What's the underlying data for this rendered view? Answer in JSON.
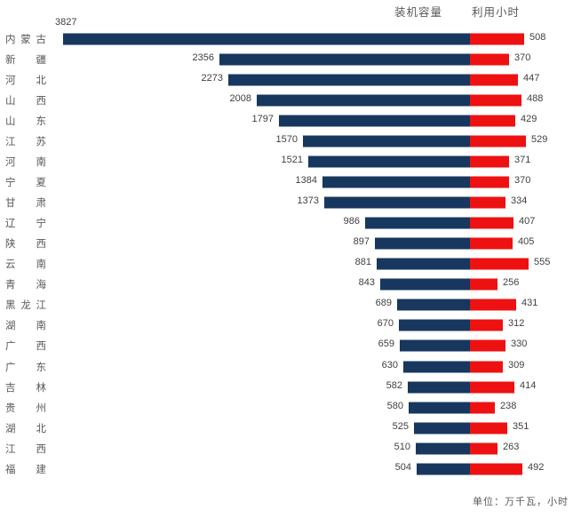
{
  "header": {
    "capacity_label": "装机容量",
    "hours_label": "利用小时"
  },
  "footer": {
    "unit_note": "单位：万千瓦，小时"
  },
  "colors": {
    "capacity_bar": "#17375E",
    "hours_bar": "#EE1111",
    "value_text": "#3F3F3F",
    "axis_text": "#595959",
    "background": "#FFFFFF"
  },
  "chart_data": {
    "type": "bar",
    "orientation": "diverging-horizontal",
    "title": "",
    "unit_note": "单位：万千瓦，小时",
    "legend_position": "top-right",
    "grid": false,
    "categories": [
      "内蒙古",
      "新 疆",
      "河 北",
      "山 西",
      "山 东",
      "江 苏",
      "河 南",
      "宁 夏",
      "甘 肃",
      "辽 宁",
      "陕 西",
      "云 南",
      "青 海",
      "黑龙江",
      "湖 南",
      "广 西",
      "广 东",
      "吉 林",
      "贵 州",
      "湖 北",
      "江 西",
      "福 建"
    ],
    "series": [
      {
        "name": "装机容量",
        "direction": "left",
        "color": "#17375E",
        "values": [
          3827,
          2356,
          2273,
          2008,
          1797,
          1570,
          1521,
          1384,
          1373,
          986,
          897,
          881,
          843,
          689,
          670,
          659,
          630,
          582,
          580,
          525,
          510,
          504
        ]
      },
      {
        "name": "利用小时",
        "direction": "right",
        "color": "#EE1111",
        "values": [
          508,
          370,
          447,
          488,
          429,
          529,
          371,
          370,
          334,
          407,
          405,
          555,
          256,
          431,
          312,
          330,
          309,
          414,
          238,
          351,
          263,
          492
        ]
      }
    ]
  }
}
